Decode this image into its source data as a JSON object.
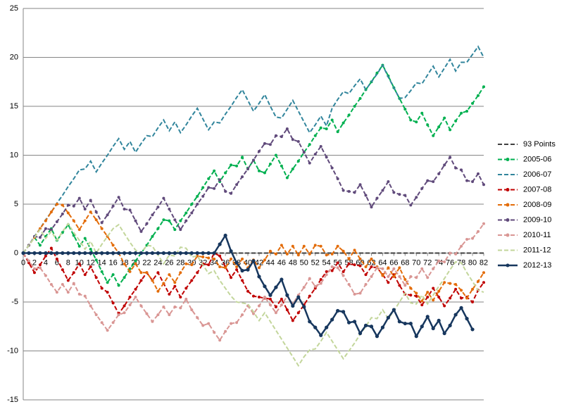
{
  "chart_data": {
    "type": "line",
    "x": [
      0,
      1,
      2,
      3,
      4,
      5,
      6,
      7,
      8,
      9,
      10,
      11,
      12,
      13,
      14,
      15,
      16,
      17,
      18,
      19,
      20,
      21,
      22,
      23,
      24,
      25,
      26,
      27,
      28,
      29,
      30,
      31,
      32,
      33,
      34,
      35,
      36,
      37,
      38,
      39,
      40,
      41,
      42,
      43,
      44,
      45,
      46,
      47,
      48,
      49,
      50,
      51,
      52,
      53,
      54,
      55,
      56,
      57,
      58,
      59,
      60,
      61,
      62,
      63,
      64,
      65,
      66,
      67,
      68,
      69,
      70,
      71,
      72,
      73,
      74,
      75,
      76,
      77,
      78,
      79,
      80,
      81,
      82
    ],
    "xlim": [
      0,
      82
    ],
    "xticks": [
      0,
      2,
      4,
      6,
      8,
      10,
      12,
      14,
      16,
      18,
      20,
      22,
      24,
      26,
      28,
      30,
      32,
      34,
      36,
      38,
      40,
      42,
      44,
      46,
      48,
      50,
      52,
      54,
      56,
      58,
      60,
      62,
      64,
      66,
      68,
      70,
      72,
      74,
      76,
      78,
      80,
      82
    ],
    "ylim": [
      -15,
      25
    ],
    "yticks": [
      -15,
      -10,
      -5,
      0,
      5,
      10,
      15,
      20,
      25
    ],
    "grid": true,
    "legend": "right",
    "series": [
      {
        "name": "93 Points",
        "color": "#404040",
        "dashed": true,
        "markers": false,
        "values": [
          0,
          0,
          0,
          0,
          0,
          0,
          0,
          0,
          0,
          0,
          0,
          0,
          0,
          0,
          0,
          0,
          0,
          0,
          0,
          0,
          0,
          0,
          0,
          0,
          0,
          0,
          0,
          0,
          0,
          0,
          0,
          0,
          0,
          0,
          0,
          0,
          0,
          0,
          0,
          0,
          0,
          0,
          0,
          0,
          0,
          0,
          0,
          0,
          0,
          0,
          0,
          0,
          0,
          0,
          0,
          0,
          0,
          0,
          0,
          0,
          0,
          0,
          0,
          0,
          0,
          0,
          0,
          0,
          0,
          0,
          0,
          0,
          0,
          0,
          0,
          0,
          0,
          0,
          0,
          0,
          0,
          0,
          0
        ]
      },
      {
        "name": "2005-06",
        "color": "#00b050",
        "dashed": true,
        "markers": true,
        "values": [
          0,
          0.8,
          1.6,
          0.8,
          1.7,
          2.5,
          1.3,
          2.1,
          2.9,
          1.8,
          0.7,
          1.5,
          0.4,
          -0.7,
          -1.9,
          -3,
          -2.2,
          -3.3,
          -2.5,
          -1.6,
          -0.8,
          0,
          0.8,
          1.7,
          2.5,
          3.4,
          3.3,
          2.4,
          3.3,
          4.1,
          5,
          5.8,
          6.7,
          7.6,
          8.4,
          7.3,
          8.2,
          9,
          8.9,
          9.8,
          8.6,
          9.5,
          8.4,
          8.2,
          9.1,
          10,
          8.9,
          7.7,
          8.6,
          9.4,
          10.3,
          11.1,
          12,
          12.8,
          12.7,
          13.6,
          12.4,
          13.3,
          14.1,
          15,
          15.8,
          16.7,
          17.5,
          18.4,
          19.2,
          18.1,
          16.9,
          15.8,
          14.7,
          13.6,
          13.4,
          14.3,
          13.1,
          12,
          12.9,
          13.8,
          12.6,
          13.5,
          14.3,
          14.5,
          15.3,
          16.1,
          17
        ]
      },
      {
        "name": "2006-07",
        "color": "#31859c",
        "dashed": true,
        "markers": false,
        "values": [
          0,
          0.8,
          1.7,
          2.5,
          3.4,
          4.2,
          5.1,
          5.9,
          6.8,
          7.6,
          8.5,
          8.6,
          9.4,
          8.3,
          9.2,
          10,
          10.9,
          11.7,
          10.6,
          11.4,
          10.3,
          11.2,
          12,
          11.9,
          12.8,
          13.6,
          12.5,
          13.4,
          12.3,
          13.1,
          14,
          14.8,
          13.7,
          12.6,
          13.4,
          13.3,
          14.2,
          15,
          15.9,
          16.7,
          15.6,
          14.5,
          15.3,
          16.2,
          15,
          13.9,
          13.8,
          14.7,
          15.6,
          14.5,
          13.4,
          12.3,
          13.1,
          14,
          13,
          14.8,
          15.7,
          16.5,
          16.3,
          17.1,
          17.8,
          16.7,
          17.5,
          18.3,
          19.2,
          18,
          16.9,
          15.8,
          15.9,
          16.6,
          17.4,
          17.3,
          18.2,
          19.1,
          18,
          18.9,
          19.8,
          18.6,
          19.5,
          19.5,
          20.3,
          21.1,
          20
        ]
      },
      {
        "name": "2007-08",
        "color": "#c00000",
        "dashed": true,
        "markers": true,
        "values": [
          0,
          -1,
          -2,
          -1.2,
          -0.3,
          0.5,
          -0.6,
          -1.7,
          -2.8,
          -2,
          -1.1,
          -2.2,
          -1.4,
          -2.5,
          -3.6,
          -4,
          -5.1,
          -6.2,
          -5.4,
          -4.5,
          -3.7,
          -2.8,
          -2,
          -2.8,
          -2,
          -3.1,
          -4.2,
          -3.4,
          -4.5,
          -3.6,
          -2.8,
          -2,
          -1.1,
          -1.2,
          0,
          -0.3,
          -1.4,
          -2.5,
          -1.7,
          -2.8,
          -3.9,
          -4.4,
          -4.5,
          -4.6,
          -4.7,
          -5.5,
          -4.7,
          -5.8,
          -6.9,
          -6.1,
          -5.3,
          -4.4,
          -3.6,
          -2.7,
          -1.9,
          -1.8,
          -1,
          -1.9,
          -1.1,
          -1.2,
          -1.3,
          -2.2,
          -1.4,
          -1.5,
          -2.2,
          -3,
          -2.2,
          -3.3,
          -4.2,
          -4.3,
          -4.4,
          -5.3,
          -4.5,
          -3.6,
          -4.5,
          -5.4,
          -4.6,
          -3.7,
          -4.6,
          -4.5,
          -5,
          -3.8,
          -3
        ]
      },
      {
        "name": "2008-09",
        "color": "#e36c09",
        "dashed": true,
        "markers": true,
        "values": [
          0,
          0.8,
          1.6,
          2.5,
          3.3,
          4.2,
          5,
          4.9,
          4.1,
          3.3,
          2.4,
          3.3,
          4.2,
          3.4,
          2.5,
          1.7,
          0.8,
          0,
          -1.1,
          -1.9,
          -1.1,
          -2,
          -2,
          -2.8,
          -3.9,
          -3.1,
          -2.2,
          -3,
          -2,
          -1.1,
          -1.2,
          -0.3,
          -0.4,
          -0.5,
          -0.6,
          -1.4,
          -1.5,
          -0.6,
          -1.4,
          -0.6,
          -1.5,
          -0.7,
          -1.5,
          -0.7,
          0.2,
          -0.1,
          0.8,
          -0.1,
          0.7,
          -0.2,
          0.7,
          -0.1,
          0.8,
          0.7,
          -0.2,
          -0.1,
          0.7,
          0.2,
          -0.6,
          0.3,
          -0.6,
          -1.4,
          -0.6,
          -1.4,
          -2.3,
          -1.5,
          -2.4,
          -1.5,
          -2.7,
          -3.6,
          -4.1,
          -4.9,
          -4,
          -4.8,
          -3.9,
          -3,
          -3.1,
          -3.2,
          -3.8,
          -4.6,
          -3.7,
          -2.9,
          -2
        ]
      },
      {
        "name": "2009-10",
        "color": "#604a7b",
        "dashed": true,
        "markers": true,
        "values": [
          0,
          0.8,
          1.7,
          1.6,
          2.5,
          2.4,
          3.2,
          4,
          4.9,
          4.8,
          5.6,
          4.5,
          5.4,
          4.2,
          3.1,
          3.9,
          4.8,
          5.7,
          4.5,
          4.4,
          3.3,
          2.2,
          3,
          3.9,
          4.7,
          5.6,
          4.5,
          3.4,
          2.4,
          3.3,
          4.1,
          5,
          5.8,
          6.7,
          6.6,
          7.5,
          6.3,
          6.1,
          7,
          7.8,
          8.6,
          9.5,
          10.4,
          11.2,
          11.1,
          12,
          11.9,
          12.7,
          11.6,
          11.4,
          10.3,
          9.2,
          10.1,
          10.9,
          9.8,
          8.7,
          7.6,
          6.4,
          6.3,
          6.2,
          7,
          5.9,
          4.7,
          5.6,
          6.4,
          7.3,
          6.2,
          6,
          5.9,
          4.9,
          5.7,
          6.6,
          7.4,
          7.3,
          8.1,
          9,
          9.8,
          8.7,
          8.5,
          7.4,
          7.3,
          8.1,
          7
        ]
      },
      {
        "name": "2010-11",
        "color": "#d99694",
        "dashed": true,
        "markers": true,
        "values": [
          0,
          -0.8,
          -1.6,
          -1.5,
          -2.3,
          -3.2,
          -4,
          -3.2,
          -4,
          -3.1,
          -4.2,
          -4.4,
          -5.4,
          -6.3,
          -7.1,
          -7.9,
          -7.1,
          -6.3,
          -6.1,
          -5.3,
          -4.5,
          -5.4,
          -6.2,
          -7,
          -6.3,
          -5.5,
          -6.3,
          -5.5,
          -5.6,
          -4.7,
          -5.8,
          -6.6,
          -7.4,
          -7.2,
          -8.1,
          -8.9,
          -8,
          -7.2,
          -7.1,
          -6.3,
          -5.4,
          -6.2,
          -5.4,
          -4.5,
          -5.3,
          -6.1,
          -5.3,
          -4.4,
          -5.2,
          -4.3,
          -3.5,
          -2.6,
          -3.4,
          -3.1,
          -2.2,
          -1.4,
          -1.5,
          -2.3,
          -3.2,
          -4.2,
          -4.1,
          -3.2,
          -2.4,
          -1.5,
          -1.6,
          -2.4,
          -1.6,
          -2.4,
          -3.3,
          -2.4,
          -2.5,
          -1.6,
          -2.5,
          -1.6,
          -0.8,
          -0.9,
          0,
          -0.1,
          0.7,
          1.4,
          1.5,
          2.2,
          3
        ]
      },
      {
        "name": "2011-12",
        "color": "#c3d69b",
        "dashed": true,
        "markers": false,
        "values": [
          0,
          0.8,
          1.6,
          2.4,
          1.5,
          2.2,
          1.3,
          2.2,
          3,
          2.1,
          1.3,
          0.4,
          1.2,
          0,
          0.9,
          1.7,
          2.5,
          2.9,
          2,
          1.1,
          0.3,
          0,
          0.8,
          0.7,
          -0.2,
          -1.1,
          -0.2,
          -0.3,
          0.6,
          0.5,
          -0.4,
          -0.3,
          -1.2,
          -2.1,
          -1.8,
          -2.8,
          -3.6,
          -4.4,
          -5,
          -5.1,
          -5.2,
          -6,
          -6.9,
          -6.1,
          -7,
          -7.9,
          -8.8,
          -9.7,
          -10.6,
          -11.5,
          -10.6,
          -9.9,
          -9.8,
          -9,
          -8.1,
          -9,
          -9.9,
          -10.8,
          -10,
          -9.2,
          -8.3,
          -7.5,
          -6.6,
          -6.7,
          -5.8,
          -6.7,
          -5.9,
          -5,
          -4.1,
          -5.1,
          -5.2,
          -4.3,
          -5.2,
          -4.3,
          -3.4,
          -2.6,
          -1.7,
          -0.9,
          -1,
          -2,
          -2.9,
          -3.8,
          -4
        ]
      },
      {
        "name": "2012-13",
        "color": "#17375e",
        "dashed": false,
        "markers": true,
        "values": [
          0,
          0,
          0,
          0,
          0,
          0,
          0,
          0,
          0,
          0,
          0,
          0,
          0,
          0,
          0,
          0,
          0,
          0,
          0,
          0,
          0,
          0,
          0,
          0,
          0,
          0,
          0,
          0,
          0,
          0,
          0,
          0,
          0,
          0,
          0,
          0.9,
          1.8,
          0.2,
          -1,
          -1.8,
          -1.7,
          -0.8,
          -2.4,
          -3.4,
          -4.3,
          -3.5,
          -2.7,
          -4.3,
          -5.4,
          -4.5,
          -5.5,
          -7,
          -7.6,
          -8.4,
          -7.6,
          -6.8,
          -5.9,
          -6,
          -7.1,
          -7,
          -8.2,
          -7.4,
          -7.5,
          -8.5,
          -7.6,
          -6.6,
          -5.8,
          -7,
          -7.2,
          -7.2,
          -8.5,
          -7.5,
          -6.5,
          -7.7,
          -6.9,
          -8.2,
          -7.4,
          -6.3,
          -5.6,
          -6.7,
          -7.8,
          null,
          null
        ]
      }
    ]
  }
}
